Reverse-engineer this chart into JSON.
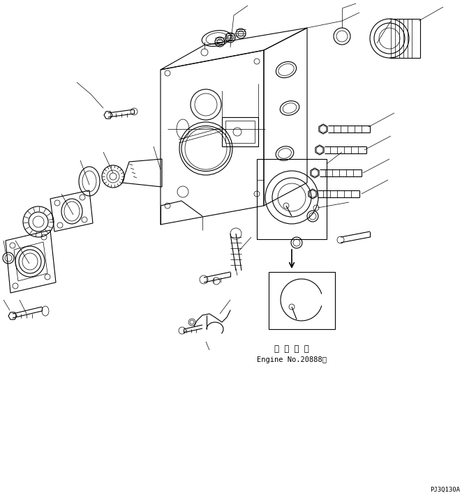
{
  "background_color": "#ffffff",
  "line_color": "#000000",
  "fig_width": 6.82,
  "fig_height": 7.17,
  "dpi": 100,
  "text_japanese": "適 用 号 機",
  "text_engine": "Engine No.20888～",
  "watermark": "PJ3Q130A",
  "title_font_size": 8.5,
  "engine_font_size": 7.5,
  "watermark_font_size": 6.5
}
